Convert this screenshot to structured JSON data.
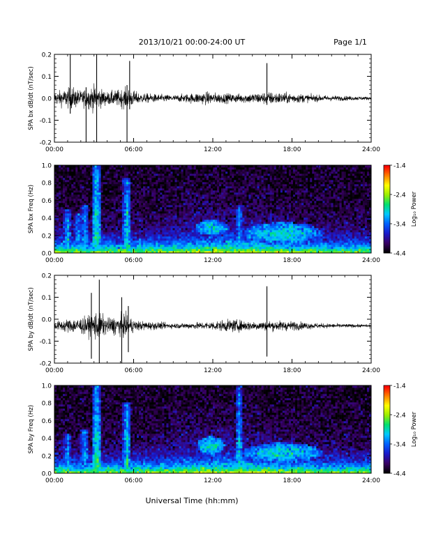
{
  "header": {
    "date_range": "2013/10/21  00:00-24:00 UT",
    "page": "Page 1/1"
  },
  "x_axis_label": "Universal Time (hh:mm)",
  "colors": {
    "trace": "#000000",
    "spectrogram_scale": [
      "#000000",
      "#3a0066",
      "#1a1acc",
      "#0060ff",
      "#00c8ff",
      "#00e070",
      "#9aee00",
      "#ffff00",
      "#ff8000",
      "#ff0000"
    ]
  },
  "chart_data": [
    {
      "type": "line",
      "name": "bx-waveform",
      "ylabel": "SPA bx dB/dt (nT/sec)",
      "x_ticks": [
        "00:00",
        "06:00",
        "12:00",
        "18:00",
        "24:00"
      ],
      "xlim": [
        0,
        24
      ],
      "y_ticks": [
        "0.2",
        "0.1",
        "0.0",
        "-0.1",
        "-0.2"
      ],
      "ylim": [
        -0.2,
        0.2
      ],
      "baseline": 0.0,
      "envelope": [
        {
          "t": 0.0,
          "amp": 0.05
        },
        {
          "t": 0.8,
          "amp": 0.07
        },
        {
          "t": 1.3,
          "amp": 0.09
        },
        {
          "t": 2.0,
          "amp": 0.06
        },
        {
          "t": 3.0,
          "amp": 0.1
        },
        {
          "t": 4.0,
          "amp": 0.05
        },
        {
          "t": 5.5,
          "amp": 0.08
        },
        {
          "t": 6.5,
          "amp": 0.04
        },
        {
          "t": 9.0,
          "amp": 0.025
        },
        {
          "t": 11.5,
          "amp": 0.05
        },
        {
          "t": 12.5,
          "amp": 0.04
        },
        {
          "t": 14.0,
          "amp": 0.035
        },
        {
          "t": 16.3,
          "amp": 0.05
        },
        {
          "t": 18.0,
          "amp": 0.04
        },
        {
          "t": 20.0,
          "amp": 0.025
        },
        {
          "t": 24.0,
          "amp": 0.012
        }
      ],
      "spikes": [
        {
          "t": 1.2,
          "min": -0.07,
          "max": 0.2
        },
        {
          "t": 2.4,
          "min": -0.2,
          "max": 0.05
        },
        {
          "t": 3.2,
          "min": -0.2,
          "max": 0.2
        },
        {
          "t": 5.5,
          "min": -0.2,
          "max": 0.06
        },
        {
          "t": 5.7,
          "min": -0.05,
          "max": 0.17
        },
        {
          "t": 16.1,
          "min": -0.03,
          "max": 0.16
        }
      ]
    },
    {
      "type": "heatmap",
      "name": "bx-spectrogram",
      "ylabel": "SPA bx Freq (Hz)",
      "x_ticks": [
        "00:00",
        "06:00",
        "12:00",
        "18:00",
        "24:00"
      ],
      "xlim": [
        0,
        24
      ],
      "y_ticks": [
        "1.0",
        "0.8",
        "0.6",
        "0.4",
        "0.2",
        "0.0"
      ],
      "ylim": [
        0.0,
        1.0
      ],
      "colorbar": {
        "label": "Log₁₀ Power",
        "ticks": [
          "-1.4",
          "-2.4",
          "-3.4",
          "-4.4"
        ],
        "range": [
          -4.4,
          -1.4
        ]
      },
      "bands": [
        {
          "t": 1.0,
          "fmax": 0.5,
          "level": -3.0
        },
        {
          "t": 1.8,
          "fmax": 0.45,
          "level": -3.1
        },
        {
          "t": 2.3,
          "fmax": 0.55,
          "level": -3.0
        },
        {
          "t": 3.2,
          "fmax": 1.0,
          "level": -2.6
        },
        {
          "t": 5.5,
          "fmax": 0.85,
          "level": -2.8
        },
        {
          "t": 14.0,
          "fmax": 0.55,
          "level": -3.1
        }
      ],
      "blobs": [
        {
          "t0": 10.7,
          "t1": 13.2,
          "f0": 0.2,
          "f1": 0.38,
          "level": -3.0
        },
        {
          "t0": 14.3,
          "t1": 20.3,
          "f0": 0.1,
          "f1": 0.35,
          "level": -3.0
        }
      ]
    },
    {
      "type": "line",
      "name": "by-waveform",
      "ylabel": "SPA by dB/dt (nT/sec)",
      "x_ticks": [
        "00:00",
        "06:00",
        "12:00",
        "18:00",
        "24:00"
      ],
      "xlim": [
        0,
        24
      ],
      "y_ticks": [
        "0.2",
        "0.1",
        "0.0",
        "-0.1",
        "-0.2"
      ],
      "ylim": [
        -0.2,
        0.2
      ],
      "baseline": -0.03,
      "envelope": [
        {
          "t": 0.0,
          "amp": 0.03
        },
        {
          "t": 0.8,
          "amp": 0.05
        },
        {
          "t": 1.5,
          "amp": 0.06
        },
        {
          "t": 2.5,
          "amp": 0.07
        },
        {
          "t": 3.2,
          "amp": 0.12
        },
        {
          "t": 4.0,
          "amp": 0.06
        },
        {
          "t": 5.3,
          "amp": 0.09
        },
        {
          "t": 6.2,
          "amp": 0.04
        },
        {
          "t": 9.0,
          "amp": 0.02
        },
        {
          "t": 11.5,
          "amp": 0.03
        },
        {
          "t": 13.5,
          "amp": 0.05
        },
        {
          "t": 15.0,
          "amp": 0.035
        },
        {
          "t": 17.5,
          "amp": 0.04
        },
        {
          "t": 20.0,
          "amp": 0.02
        },
        {
          "t": 24.0,
          "amp": 0.01
        }
      ],
      "spikes": [
        {
          "t": 2.8,
          "min": -0.18,
          "max": 0.12
        },
        {
          "t": 3.4,
          "min": -0.2,
          "max": 0.18
        },
        {
          "t": 5.1,
          "min": -0.2,
          "max": 0.1
        },
        {
          "t": 5.6,
          "min": -0.15,
          "max": 0.06
        },
        {
          "t": 16.1,
          "min": -0.17,
          "max": 0.15
        }
      ]
    },
    {
      "type": "heatmap",
      "name": "by-spectrogram",
      "ylabel": "SPA by Freq (Hz)",
      "x_ticks": [
        "00:00",
        "06:00",
        "12:00",
        "18:00",
        "24:00"
      ],
      "xlim": [
        0,
        24
      ],
      "y_ticks": [
        "1.0",
        "0.8",
        "0.6",
        "0.4",
        "0.2",
        "0.0"
      ],
      "ylim": [
        0.0,
        1.0
      ],
      "colorbar": {
        "label": "Log₁₀ Power",
        "ticks": [
          "-1.4",
          "-2.4",
          "-3.4",
          "-4.4"
        ],
        "range": [
          -4.4,
          -1.4
        ]
      },
      "bands": [
        {
          "t": 1.0,
          "fmax": 0.45,
          "level": -3.1
        },
        {
          "t": 2.3,
          "fmax": 0.5,
          "level": -3.0
        },
        {
          "t": 3.2,
          "fmax": 1.0,
          "level": -2.6
        },
        {
          "t": 5.5,
          "fmax": 0.8,
          "level": -2.8
        },
        {
          "t": 14.0,
          "fmax": 1.0,
          "level": -2.9
        }
      ],
      "blobs": [
        {
          "t0": 10.8,
          "t1": 12.9,
          "f0": 0.22,
          "f1": 0.42,
          "level": -2.9
        },
        {
          "t0": 14.3,
          "t1": 20.3,
          "f0": 0.12,
          "f1": 0.35,
          "level": -3.0
        }
      ]
    }
  ]
}
